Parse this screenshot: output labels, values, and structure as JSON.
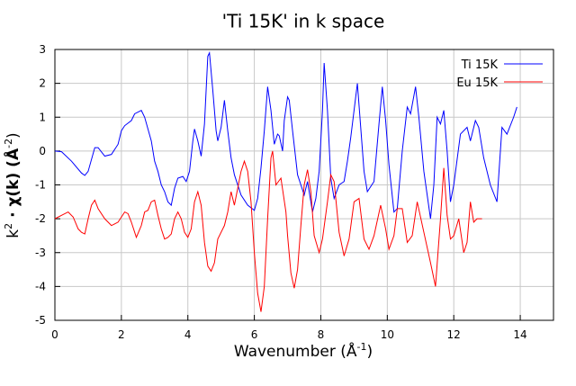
{
  "chart_data": {
    "type": "line",
    "title": "'Ti 15K' in k space",
    "x_label": [
      "Wavenumber    (Å",
      "-1",
      ")"
    ],
    "y_label": [
      "k",
      "2",
      " · χ(k)    (Å",
      "-2",
      ")"
    ],
    "xlim": [
      0,
      15
    ],
    "xticks": [
      0,
      2,
      4,
      6,
      8,
      10,
      12,
      14
    ],
    "ylim": [
      -5,
      3
    ],
    "yticks": [
      -5,
      -4,
      -3,
      -2,
      -1,
      0,
      1,
      2,
      3
    ],
    "grid": true,
    "legend": "top-right",
    "series": [
      {
        "name": "Ti 15K",
        "color": "#0000ff",
        "x": [
          0,
          0.2,
          0.5,
          0.8,
          0.9,
          1.0,
          1.2,
          1.3,
          1.5,
          1.7,
          1.9,
          2.0,
          2.1,
          2.3,
          2.4,
          2.6,
          2.7,
          2.9,
          3.0,
          3.1,
          3.2,
          3.3,
          3.4,
          3.5,
          3.6,
          3.7,
          3.85,
          3.95,
          4.05,
          4.15,
          4.2,
          4.3,
          4.4,
          4.5,
          4.6,
          4.65,
          4.75,
          4.85,
          4.9,
          5.0,
          5.1,
          5.2,
          5.3,
          5.4,
          5.6,
          5.8,
          6.0,
          6.1,
          6.2,
          6.3,
          6.4,
          6.5,
          6.6,
          6.7,
          6.75,
          6.85,
          6.9,
          7.0,
          7.05,
          7.15,
          7.3,
          7.4,
          7.5,
          7.6,
          7.75,
          7.85,
          7.95,
          8.05,
          8.1,
          8.2,
          8.3,
          8.4,
          8.55,
          8.7,
          8.8,
          8.9,
          9.0,
          9.1,
          9.2,
          9.3,
          9.4,
          9.6,
          9.75,
          9.85,
          9.95,
          10.05,
          10.2,
          10.3,
          10.45,
          10.6,
          10.7,
          10.85,
          10.95,
          11.1,
          11.3,
          11.4,
          11.5,
          11.6,
          11.7,
          11.8,
          11.9,
          12.0,
          12.2,
          12.4,
          12.5,
          12.65,
          12.75,
          12.9,
          13.1,
          13.3,
          13.45,
          13.6,
          13.8,
          13.9
        ],
        "values": [
          0,
          -0.02,
          -0.3,
          -0.65,
          -0.72,
          -0.6,
          0.1,
          0.1,
          -0.15,
          -0.1,
          0.2,
          0.6,
          0.75,
          0.9,
          1.1,
          1.2,
          1.0,
          0.3,
          -0.3,
          -0.6,
          -1.0,
          -1.2,
          -1.5,
          -1.6,
          -1.1,
          -0.8,
          -0.75,
          -0.9,
          -0.6,
          0.3,
          0.65,
          0.3,
          -0.15,
          0.8,
          2.8,
          2.9,
          1.8,
          0.6,
          0.3,
          0.7,
          1.5,
          0.6,
          -0.2,
          -0.7,
          -1.3,
          -1.6,
          -1.75,
          -1.4,
          -0.5,
          0.6,
          1.9,
          1.2,
          0.2,
          0.5,
          0.45,
          0.0,
          0.9,
          1.6,
          1.5,
          0.6,
          -0.7,
          -1.0,
          -1.3,
          -0.9,
          -1.8,
          -1.4,
          -0.6,
          1.2,
          2.6,
          1.2,
          -0.8,
          -1.4,
          -1.0,
          -0.9,
          -0.3,
          0.4,
          1.2,
          2.0,
          0.7,
          -0.6,
          -1.2,
          -0.9,
          0.8,
          1.9,
          0.9,
          -0.4,
          -1.8,
          -1.7,
          0.0,
          1.3,
          1.1,
          1.9,
          1.0,
          -0.6,
          -2.0,
          -1.0,
          1.0,
          0.8,
          1.2,
          0.0,
          -1.5,
          -1.0,
          0.5,
          0.7,
          0.3,
          0.9,
          0.7,
          -0.2,
          -1.0,
          -1.5,
          0.7,
          0.5,
          1.0,
          1.3
        ]
      },
      {
        "name": "Eu 15K",
        "color": "#ff0000",
        "x": [
          0,
          0.2,
          0.4,
          0.55,
          0.7,
          0.8,
          0.9,
          1.0,
          1.1,
          1.2,
          1.3,
          1.5,
          1.7,
          1.9,
          2.1,
          2.2,
          2.3,
          2.45,
          2.6,
          2.7,
          2.8,
          2.9,
          3.0,
          3.1,
          3.2,
          3.3,
          3.4,
          3.5,
          3.6,
          3.7,
          3.8,
          3.9,
          4.0,
          4.1,
          4.2,
          4.3,
          4.4,
          4.5,
          4.6,
          4.7,
          4.8,
          4.9,
          5.1,
          5.2,
          5.3,
          5.4,
          5.5,
          5.6,
          5.7,
          5.8,
          5.9,
          6.0,
          6.1,
          6.2,
          6.3,
          6.4,
          6.5,
          6.55,
          6.65,
          6.8,
          6.95,
          7.0,
          7.1,
          7.2,
          7.3,
          7.4,
          7.5,
          7.6,
          7.7,
          7.8,
          7.95,
          8.05,
          8.2,
          8.3,
          8.4,
          8.55,
          8.7,
          8.85,
          9.0,
          9.15,
          9.3,
          9.45,
          9.6,
          9.8,
          9.95,
          10.05,
          10.2,
          10.3,
          10.45,
          10.6,
          10.75,
          10.9,
          11.1,
          11.3,
          11.45,
          11.6,
          11.7,
          11.8,
          11.9,
          12.0,
          12.15,
          12.3,
          12.4,
          12.5,
          12.6,
          12.7,
          12.85
        ],
        "values": [
          -2.0,
          -1.9,
          -1.8,
          -1.95,
          -2.3,
          -2.4,
          -2.45,
          -2.0,
          -1.6,
          -1.45,
          -1.7,
          -2.0,
          -2.2,
          -2.1,
          -1.8,
          -1.85,
          -2.1,
          -2.55,
          -2.2,
          -1.8,
          -1.75,
          -1.5,
          -1.45,
          -1.9,
          -2.3,
          -2.6,
          -2.55,
          -2.45,
          -2.0,
          -1.8,
          -2.0,
          -2.4,
          -2.55,
          -2.3,
          -1.5,
          -1.2,
          -1.6,
          -2.7,
          -3.4,
          -3.55,
          -3.3,
          -2.6,
          -2.2,
          -1.8,
          -1.2,
          -1.6,
          -1.1,
          -0.6,
          -0.3,
          -0.6,
          -1.5,
          -3.0,
          -4.2,
          -4.75,
          -4.0,
          -2.0,
          -0.2,
          0.0,
          -1.0,
          -0.8,
          -1.8,
          -2.5,
          -3.6,
          -4.05,
          -3.5,
          -2.2,
          -1.0,
          -0.55,
          -1.2,
          -2.5,
          -3.0,
          -2.6,
          -1.5,
          -0.7,
          -0.9,
          -2.4,
          -3.1,
          -2.6,
          -1.5,
          -1.4,
          -2.6,
          -2.9,
          -2.5,
          -1.6,
          -2.3,
          -2.9,
          -2.5,
          -1.7,
          -1.7,
          -2.7,
          -2.5,
          -1.5,
          -2.4,
          -3.3,
          -4.0,
          -2.0,
          -0.5,
          -1.9,
          -2.6,
          -2.5,
          -2.0,
          -3.0,
          -2.7,
          -1.5,
          -2.1,
          -2.0,
          -2.0
        ]
      }
    ]
  }
}
